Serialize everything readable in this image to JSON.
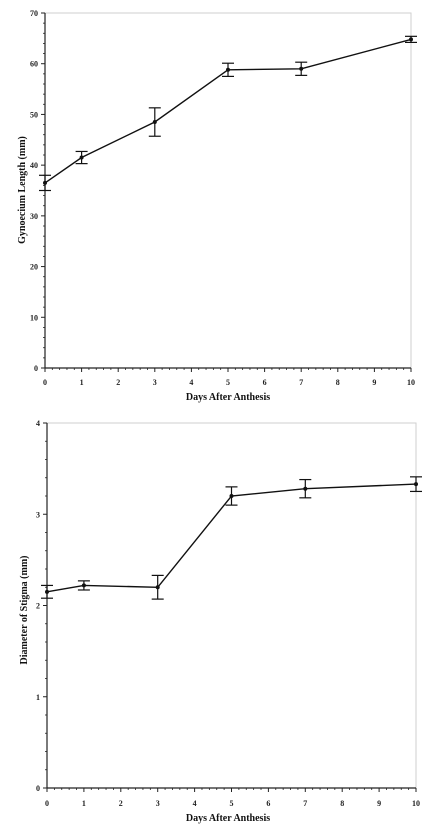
{
  "chart_data": [
    {
      "type": "line",
      "xlabel": "Days After Anthesis",
      "ylabel": "Gynoecium Length (mm)",
      "xlim": [
        0,
        10
      ],
      "ylim": [
        0,
        70
      ],
      "x_ticks": [
        0,
        1,
        2,
        3,
        4,
        5,
        6,
        7,
        8,
        9,
        10
      ],
      "y_ticks": [
        0,
        10,
        20,
        30,
        40,
        50,
        60,
        70
      ],
      "grid": false,
      "series": [
        {
          "x": [
            0,
            1,
            3,
            5,
            7,
            10
          ],
          "y": [
            36.5,
            41.5,
            48.5,
            58.8,
            59.0,
            64.8
          ],
          "error": [
            1.5,
            1.2,
            2.8,
            1.3,
            1.3,
            0.6
          ]
        }
      ]
    },
    {
      "type": "line",
      "xlabel": "Days After Anthesis",
      "ylabel": "Diameter of Stigma (mm)",
      "xlim": [
        0,
        10
      ],
      "ylim": [
        0,
        4
      ],
      "x_ticks": [
        0,
        1,
        2,
        3,
        4,
        5,
        6,
        7,
        8,
        9,
        10
      ],
      "y_ticks": [
        0,
        1,
        2,
        3,
        4
      ],
      "grid": false,
      "series": [
        {
          "x": [
            0,
            1,
            3,
            5,
            7,
            10
          ],
          "y": [
            2.15,
            2.22,
            2.2,
            3.2,
            3.28,
            3.33
          ],
          "error": [
            0.07,
            0.05,
            0.13,
            0.1,
            0.1,
            0.08
          ]
        }
      ]
    }
  ]
}
